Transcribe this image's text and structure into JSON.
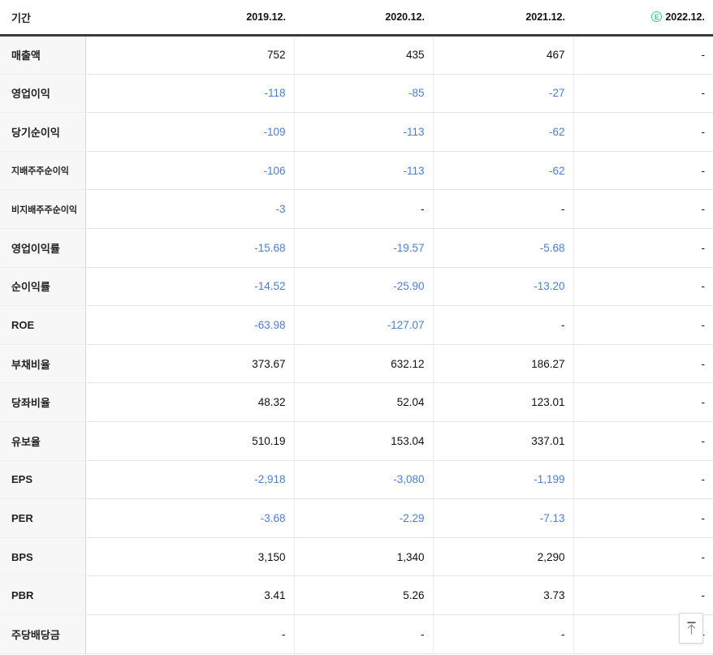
{
  "table": {
    "period_label": "기간",
    "columns": [
      {
        "label": "2019.12.",
        "estimate": false
      },
      {
        "label": "2020.12.",
        "estimate": false
      },
      {
        "label": "2021.12.",
        "estimate": false
      },
      {
        "label": "2022.12.",
        "estimate": true
      }
    ],
    "estimate_badge": "E",
    "rows": [
      {
        "label": "매출액",
        "small": false,
        "values": [
          "752",
          "435",
          "467",
          "-"
        ]
      },
      {
        "label": "영업이익",
        "small": false,
        "values": [
          "-118",
          "-85",
          "-27",
          "-"
        ]
      },
      {
        "label": "당기순이익",
        "small": false,
        "values": [
          "-109",
          "-113",
          "-62",
          "-"
        ]
      },
      {
        "label": "지배주주순이익",
        "small": true,
        "values": [
          "-106",
          "-113",
          "-62",
          "-"
        ]
      },
      {
        "label": "비지배주주순이익",
        "small": true,
        "values": [
          "-3",
          "-",
          "-",
          "-"
        ]
      },
      {
        "label": "영업이익률",
        "small": false,
        "values": [
          "-15.68",
          "-19.57",
          "-5.68",
          "-"
        ]
      },
      {
        "label": "순이익률",
        "small": false,
        "values": [
          "-14.52",
          "-25.90",
          "-13.20",
          "-"
        ]
      },
      {
        "label": "ROE",
        "small": false,
        "values": [
          "-63.98",
          "-127.07",
          "-",
          "-"
        ]
      },
      {
        "label": "부채비율",
        "small": false,
        "values": [
          "373.67",
          "632.12",
          "186.27",
          "-"
        ]
      },
      {
        "label": "당좌비율",
        "small": false,
        "values": [
          "48.32",
          "52.04",
          "123.01",
          "-"
        ]
      },
      {
        "label": "유보율",
        "small": false,
        "values": [
          "510.19",
          "153.04",
          "337.01",
          "-"
        ]
      },
      {
        "label": "EPS",
        "small": false,
        "values": [
          "-2,918",
          "-3,080",
          "-1,199",
          "-"
        ]
      },
      {
        "label": "PER",
        "small": false,
        "values": [
          "-3.68",
          "-2.29",
          "-7.13",
          "-"
        ]
      },
      {
        "label": "BPS",
        "small": false,
        "values": [
          "3,150",
          "1,340",
          "2,290",
          "-"
        ]
      },
      {
        "label": "PBR",
        "small": false,
        "values": [
          "3.41",
          "5.26",
          "3.73",
          "-"
        ]
      },
      {
        "label": "주당배당금",
        "small": false,
        "values": [
          "-",
          "-",
          "-",
          "-"
        ]
      }
    ]
  },
  "colors": {
    "negative_value": "#4a7ed9",
    "normal_value": "#111111",
    "estimate_badge": "#41c09a",
    "header_border": "#3a3a3c"
  },
  "scroll_top_button": {
    "icon": "arrow-up-to-top"
  }
}
